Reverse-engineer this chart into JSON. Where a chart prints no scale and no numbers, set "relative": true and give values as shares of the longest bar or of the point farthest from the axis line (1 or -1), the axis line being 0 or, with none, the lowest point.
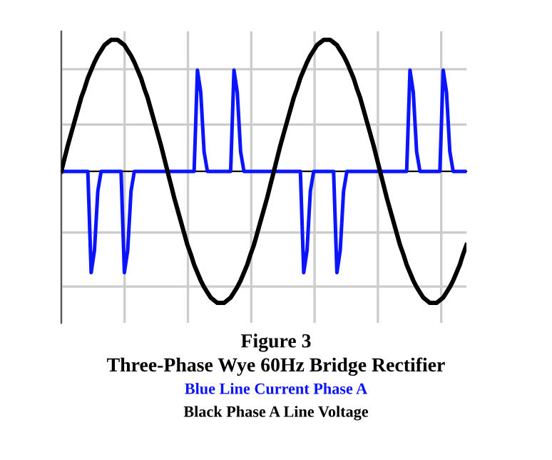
{
  "chart_data": {
    "type": "line",
    "title": "Figure 3",
    "subtitle": "Three-Phase Wye 60Hz Bridge Rectifier",
    "relative": true,
    "grid": true,
    "categories": [
      null,
      null,
      null,
      null,
      null,
      null,
      null,
      null,
      null,
      null,
      null,
      null,
      null,
      null,
      null,
      null,
      null,
      null,
      null,
      null,
      null,
      null,
      null,
      null,
      null,
      null,
      null,
      null,
      null,
      null,
      null,
      null,
      null,
      null,
      null,
      null,
      null,
      null,
      null,
      null,
      null,
      null,
      null,
      null,
      null,
      null,
      null,
      null,
      null,
      null,
      null,
      null,
      null,
      null,
      null,
      null,
      null,
      null,
      null,
      null,
      null,
      null,
      null,
      null,
      null,
      null,
      null,
      null,
      null,
      null,
      null,
      null,
      null,
      null,
      null,
      null,
      null,
      null,
      null,
      null,
      null,
      null,
      null,
      null,
      null,
      null,
      null,
      null,
      null,
      null,
      null,
      null,
      null,
      null,
      null,
      null,
      null,
      null,
      null,
      null,
      null,
      null,
      null,
      null,
      null,
      null,
      null,
      null,
      null,
      null,
      null,
      null,
      null,
      null,
      null,
      null,
      null,
      null,
      null,
      null,
      null,
      null,
      null
    ],
    "series": [
      {
        "name": "Blue Line Current Phase A",
        "color": "#0a14ff",
        "values": [
          0,
          0,
          0,
          0,
          0,
          0,
          0,
          0,
          0,
          -0.77,
          -0.6,
          -0.15,
          0,
          0,
          0,
          0,
          0,
          0,
          0,
          -0.77,
          -0.6,
          -0.15,
          0,
          0,
          0,
          0,
          0,
          0,
          0,
          0,
          0,
          0,
          0,
          0,
          0,
          0,
          0,
          0,
          0,
          0,
          0,
          0.77,
          0.6,
          0.15,
          0,
          0,
          0,
          0,
          0,
          0,
          0,
          0,
          0.77,
          0.6,
          0.15,
          0,
          0,
          0,
          0,
          0,
          0,
          0,
          0,
          0,
          0,
          0,
          0,
          0,
          0,
          0,
          0,
          0,
          0,
          -0.77,
          -0.6,
          -0.15,
          0,
          0,
          0,
          0,
          0,
          0,
          0,
          -0.77,
          -0.6,
          -0.15,
          0,
          0,
          0,
          0,
          0,
          0,
          0,
          0,
          0,
          0,
          0,
          0,
          0,
          0,
          0,
          0,
          0,
          0,
          0,
          0.77,
          0.6,
          0.15,
          0,
          0,
          0,
          0,
          0,
          0,
          0,
          0.77,
          0.6,
          0.15,
          0,
          0,
          0,
          0,
          0
        ]
      },
      {
        "name": "Black Phase A Line Voltage",
        "color": "#000000",
        "values": [
          0,
          0.1,
          0.2,
          0.29,
          0.38,
          0.47,
          0.56,
          0.63,
          0.71,
          0.77,
          0.83,
          0.88,
          0.92,
          0.96,
          0.98,
          1,
          1,
          1,
          0.98,
          0.96,
          0.92,
          0.88,
          0.83,
          0.77,
          0.71,
          0.63,
          0.56,
          0.47,
          0.38,
          0.29,
          0.2,
          0.1,
          0,
          -0.1,
          -0.2,
          -0.29,
          -0.38,
          -0.47,
          -0.56,
          -0.63,
          -0.71,
          -0.77,
          -0.83,
          -0.88,
          -0.92,
          -0.96,
          -0.98,
          -1,
          -1,
          -1,
          -0.98,
          -0.96,
          -0.92,
          -0.88,
          -0.83,
          -0.77,
          -0.71,
          -0.63,
          -0.56,
          -0.47,
          -0.38,
          -0.29,
          -0.2,
          -0.1,
          0,
          0.1,
          0.2,
          0.29,
          0.38,
          0.47,
          0.56,
          0.63,
          0.71,
          0.77,
          0.83,
          0.88,
          0.92,
          0.96,
          0.98,
          1,
          1,
          1,
          0.98,
          0.96,
          0.92,
          0.88,
          0.83,
          0.77,
          0.71,
          0.63,
          0.56,
          0.47,
          0.38,
          0.29,
          0.2,
          0.1,
          0,
          -0.1,
          -0.2,
          -0.29,
          -0.38,
          -0.47,
          -0.56,
          -0.63,
          -0.71,
          -0.77,
          -0.83,
          -0.88,
          -0.92,
          -0.96,
          -0.98,
          -1,
          -1,
          -1,
          -0.98,
          -0.96,
          -0.92,
          -0.88,
          -0.83,
          -0.77,
          -0.71,
          -0.63,
          -0.56
        ]
      }
    ]
  }
}
